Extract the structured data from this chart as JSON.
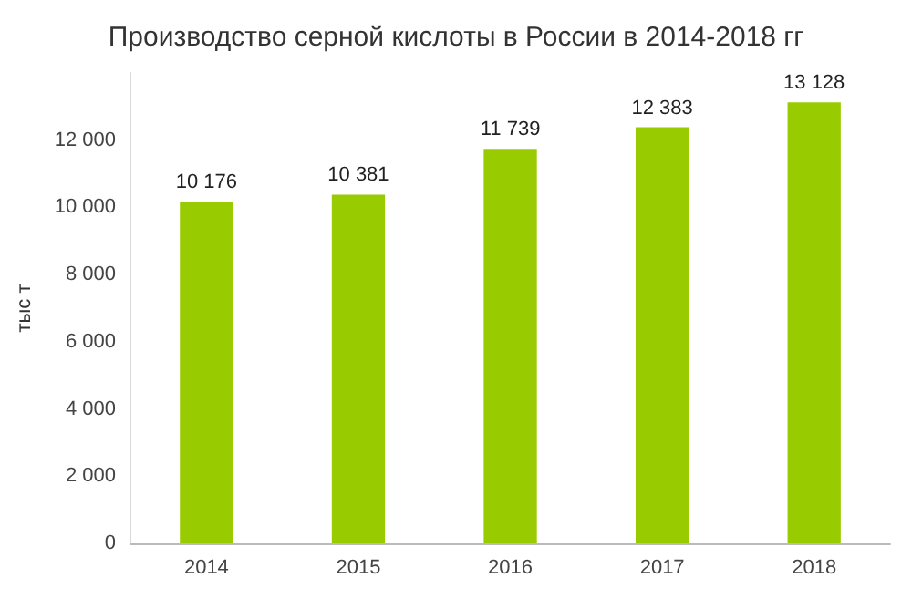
{
  "chart_data": {
    "type": "bar",
    "title": "Производство серной кислоты в России в 2014-2018 гг",
    "ylabel": "тыс т",
    "categories": [
      "2014",
      "2015",
      "2016",
      "2017",
      "2018"
    ],
    "values": [
      10176,
      10381,
      11739,
      12383,
      13128
    ],
    "color": "#99cc00",
    "value_labels": [
      "10 176",
      "10 381",
      "11 739",
      "12 383",
      "13 128"
    ],
    "ylim": [
      0,
      14000
    ],
    "yticks": [
      {
        "value": 0,
        "label": "0"
      },
      {
        "value": 2000,
        "label": "2 000"
      },
      {
        "value": 4000,
        "label": "4 000"
      },
      {
        "value": 6000,
        "label": "6 000"
      },
      {
        "value": 8000,
        "label": "8 000"
      },
      {
        "value": 10000,
        "label": "10 000"
      },
      {
        "value": 12000,
        "label": "12 000"
      }
    ],
    "grid": false
  }
}
